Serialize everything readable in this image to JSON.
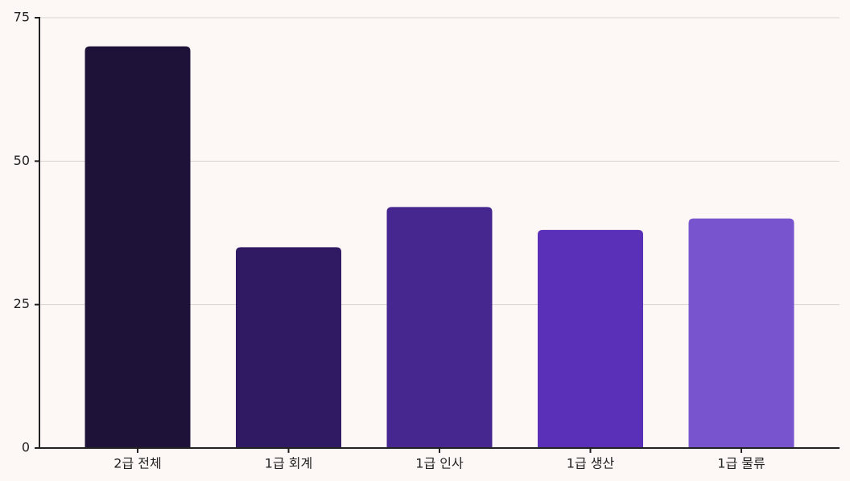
{
  "chart_data": {
    "type": "bar",
    "categories": [
      "2급 전체",
      "1급 회계",
      "1급 인사",
      "1급 생산",
      "1급 물류"
    ],
    "values": [
      70,
      35,
      42,
      38,
      40
    ],
    "colors": [
      "#1e1239",
      "#2f1a63",
      "#46278f",
      "#5b30b8",
      "#7855cf"
    ],
    "ylim": [
      0,
      75
    ],
    "yticks": [
      0,
      25,
      50,
      75
    ],
    "grid": true
  }
}
